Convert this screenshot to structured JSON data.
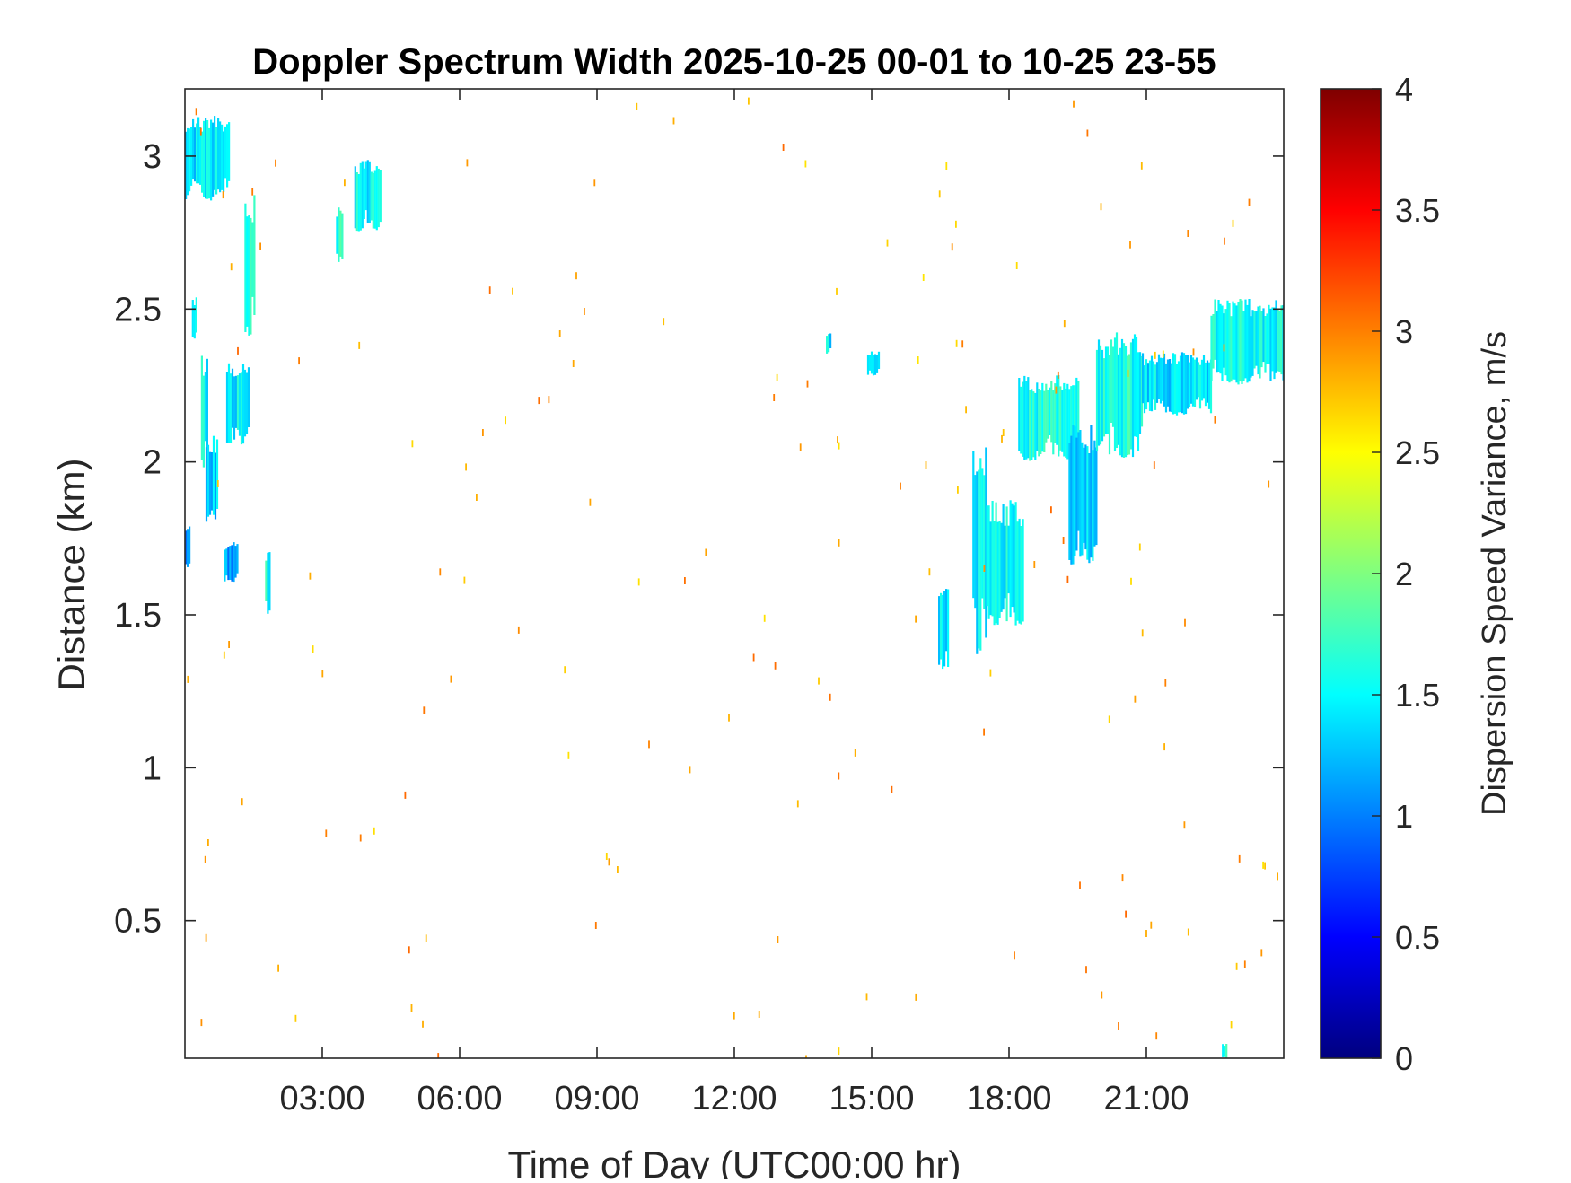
{
  "chart_data": {
    "type": "heatmap",
    "title": "Doppler Spectrum Width 2025-10-25 00-01 to 10-25 23-55",
    "xlabel": "Time of Day (UTC00:00 hr)",
    "ylabel": "Distance (km)",
    "colorbar_label": "Dispersion Speed Variance, m/s",
    "colormap": "jet",
    "xlim_hours": [
      0,
      24
    ],
    "ylim_km": [
      0.05,
      3.22
    ],
    "clim": [
      0,
      4
    ],
    "x_ticks": [
      {
        "value": 3,
        "label": "03:00"
      },
      {
        "value": 6,
        "label": "06:00"
      },
      {
        "value": 9,
        "label": "09:00"
      },
      {
        "value": 12,
        "label": "12:00"
      },
      {
        "value": 15,
        "label": "15:00"
      },
      {
        "value": 18,
        "label": "18:00"
      },
      {
        "value": 21,
        "label": "21:00"
      }
    ],
    "y_ticks": [
      {
        "value": 0.5,
        "label": "0.5"
      },
      {
        "value": 1,
        "label": "1"
      },
      {
        "value": 1.5,
        "label": "1.5"
      },
      {
        "value": 2,
        "label": "2"
      },
      {
        "value": 2.5,
        "label": "2.5"
      },
      {
        "value": 3,
        "label": "3"
      }
    ],
    "colorbar_ticks": [
      {
        "value": 0,
        "label": "0"
      },
      {
        "value": 0.5,
        "label": "0.5"
      },
      {
        "value": 1,
        "label": "1"
      },
      {
        "value": 1.5,
        "label": "1.5"
      },
      {
        "value": 2,
        "label": "2"
      },
      {
        "value": 2.5,
        "label": "2.5"
      },
      {
        "value": 3,
        "label": "3"
      },
      {
        "value": 3.5,
        "label": "3.5"
      },
      {
        "value": 4,
        "label": "4"
      }
    ],
    "grid": false,
    "regions": [
      {
        "t0": 0.0,
        "t1": 0.95,
        "h0": 2.85,
        "h1": 3.15,
        "value": 1.4
      },
      {
        "t0": 0.0,
        "t1": 0.08,
        "h0": 1.65,
        "h1": 1.8,
        "value": 1.0
      },
      {
        "t0": 0.15,
        "t1": 0.25,
        "h0": 2.4,
        "h1": 2.55,
        "value": 1.6
      },
      {
        "t0": 0.35,
        "t1": 0.5,
        "h0": 1.95,
        "h1": 2.38,
        "value": 1.5
      },
      {
        "t0": 0.45,
        "t1": 0.7,
        "h0": 1.8,
        "h1": 2.1,
        "value": 1.3
      },
      {
        "t0": 0.9,
        "t1": 1.4,
        "h0": 2.05,
        "h1": 2.35,
        "value": 1.45
      },
      {
        "t0": 0.85,
        "t1": 1.15,
        "h0": 1.6,
        "h1": 1.75,
        "value": 1.1
      },
      {
        "t0": 1.3,
        "t1": 1.5,
        "h0": 2.4,
        "h1": 2.9,
        "value": 1.6
      },
      {
        "t0": 1.75,
        "t1": 1.85,
        "h0": 1.5,
        "h1": 1.72,
        "value": 1.6
      },
      {
        "t0": 3.3,
        "t1": 3.45,
        "h0": 2.65,
        "h1": 2.85,
        "value": 1.6
      },
      {
        "t0": 3.7,
        "t1": 4.25,
        "h0": 2.75,
        "h1": 3.0,
        "value": 1.5
      },
      {
        "t0": 14.0,
        "t1": 14.08,
        "h0": 2.35,
        "h1": 2.43,
        "value": 1.4
      },
      {
        "t0": 14.9,
        "t1": 15.15,
        "h0": 2.28,
        "h1": 2.37,
        "value": 1.3
      },
      {
        "t0": 16.45,
        "t1": 16.65,
        "h0": 1.3,
        "h1": 1.6,
        "value": 1.4
      },
      {
        "t0": 17.2,
        "t1": 17.5,
        "h0": 1.35,
        "h1": 2.1,
        "value": 1.5
      },
      {
        "t0": 17.5,
        "t1": 18.3,
        "h0": 1.45,
        "h1": 1.9,
        "value": 1.5
      },
      {
        "t0": 18.2,
        "t1": 19.5,
        "h0": 2.0,
        "h1": 2.3,
        "value": 1.6
      },
      {
        "t0": 19.3,
        "t1": 19.9,
        "h0": 1.65,
        "h1": 2.15,
        "value": 1.35
      },
      {
        "t0": 19.9,
        "t1": 20.9,
        "h0": 2.0,
        "h1": 2.45,
        "value": 1.6
      },
      {
        "t0": 20.9,
        "t1": 22.4,
        "h0": 2.15,
        "h1": 2.37,
        "value": 1.4
      },
      {
        "t0": 22.4,
        "t1": 24.0,
        "h0": 2.25,
        "h1": 2.55,
        "value": 1.55
      },
      {
        "t0": 22.65,
        "t1": 22.75,
        "h0": 0.05,
        "h1": 0.1,
        "value": 1.7
      }
    ]
  }
}
